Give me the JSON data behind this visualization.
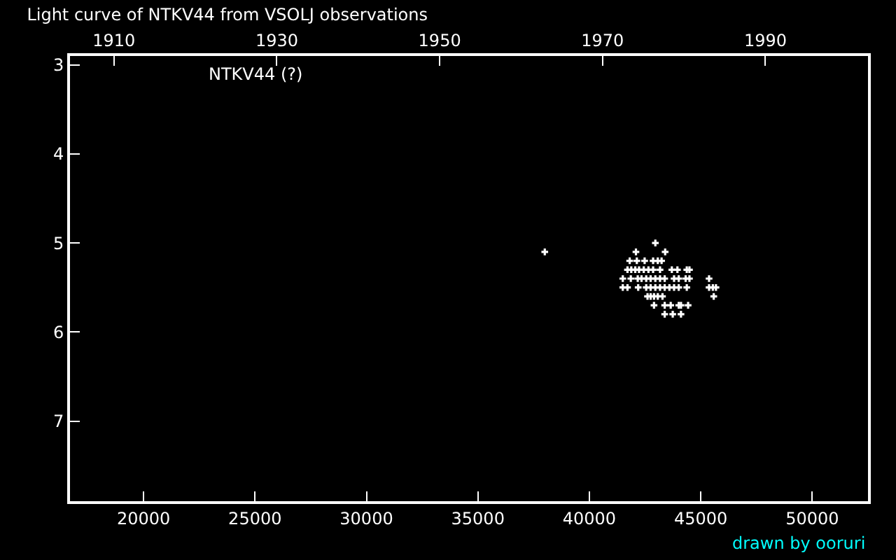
{
  "chart_data": {
    "type": "scatter",
    "title": "Light curve of NTKV44 from VSOLJ observations",
    "annotations": [
      "NTKV44 (?)",
      "drawn by ooruri"
    ],
    "series": [
      {
        "color": "#ffffff",
        "x": [
          42960,
          38000,
          42090,
          43400,
          41810,
          42130,
          42480,
          42860,
          43070,
          43240,
          41710,
          41880,
          42060,
          42230,
          42440,
          42650,
          42860,
          43170,
          43700,
          43950,
          44370,
          44490,
          41500,
          41860,
          42170,
          42340,
          42550,
          42750,
          42960,
          43170,
          43380,
          43800,
          44010,
          44320,
          44490,
          45370,
          41500,
          41710,
          42190,
          42550,
          42750,
          42960,
          43170,
          43380,
          43590,
          43800,
          44010,
          44370,
          45370,
          45540,
          45680,
          42610,
          42750,
          42900,
          43070,
          43280,
          45580,
          42900,
          43380,
          43650,
          44010,
          44110,
          44430,
          43380,
          43740,
          44110
        ],
        "values": [
          5.0,
          5.1,
          5.1,
          5.1,
          5.2,
          5.2,
          5.2,
          5.2,
          5.2,
          5.2,
          5.3,
          5.3,
          5.3,
          5.3,
          5.3,
          5.3,
          5.3,
          5.3,
          5.3,
          5.3,
          5.3,
          5.3,
          5.4,
          5.4,
          5.4,
          5.4,
          5.4,
          5.4,
          5.4,
          5.4,
          5.4,
          5.4,
          5.4,
          5.4,
          5.4,
          5.4,
          5.5,
          5.5,
          5.5,
          5.5,
          5.5,
          5.5,
          5.5,
          5.5,
          5.5,
          5.5,
          5.5,
          5.5,
          5.5,
          5.5,
          5.5,
          5.6,
          5.6,
          5.6,
          5.6,
          5.6,
          5.6,
          5.7,
          5.7,
          5.7,
          5.7,
          5.7,
          5.7,
          5.8,
          5.8,
          5.8
        ]
      }
    ],
    "marker": "cross",
    "grid": false,
    "xlim": [
      16700,
      52500
    ],
    "xticks": [
      20000,
      25000,
      30000,
      35000,
      40000,
      45000,
      50000
    ],
    "x2lim": [
      1904.6,
      2002.6
    ],
    "x2ticks": [
      1910,
      1930,
      1950,
      1970,
      1990
    ],
    "ylim": [
      7.9,
      2.9
    ],
    "yticks": [
      3,
      4,
      5,
      6,
      7
    ]
  }
}
